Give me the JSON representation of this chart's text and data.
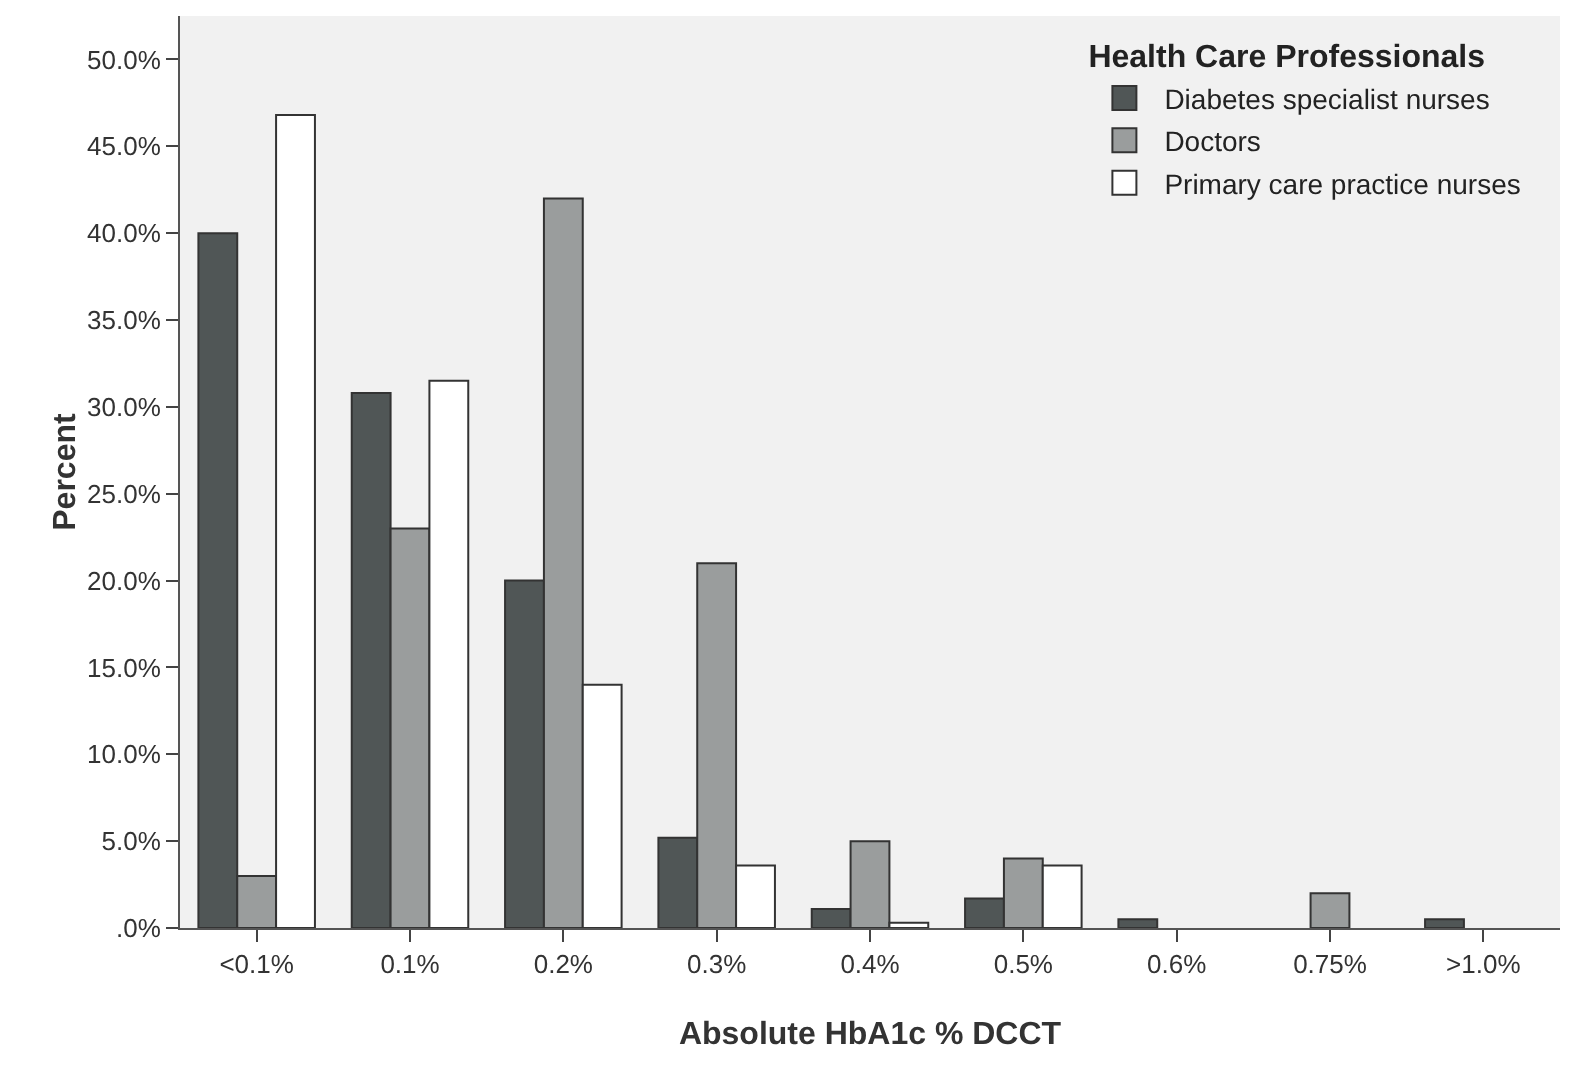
{
  "chart_data": {
    "type": "bar",
    "xlabel": "Absolute HbA1c % DCCT",
    "ylabel": "Percent",
    "legend_title": "Health Care Professionals",
    "categories": [
      "<0.1%",
      "0.1%",
      "0.2%",
      "0.3%",
      "0.4%",
      "0.5%",
      "0.6%",
      "0.75%",
      ">1.0%"
    ],
    "series": [
      {
        "name": "Diabetes specialist nurses",
        "color": "#505656",
        "values": [
          40,
          30.8,
          20,
          5.2,
          1.1,
          1.7,
          0.5,
          0,
          0.5
        ]
      },
      {
        "name": "Doctors",
        "color": "#9a9d9d",
        "values": [
          3,
          23,
          42,
          21,
          5,
          4,
          0,
          2,
          0
        ]
      },
      {
        "name": "Primary care practice nurses",
        "color": "#ffffff",
        "values": [
          46.8,
          31.5,
          14,
          3.6,
          0.3,
          3.6,
          0,
          0,
          0
        ]
      }
    ],
    "ylim": [
      0,
      52.5
    ],
    "yticks": [
      {
        "value": 0,
        "label": ".0%"
      },
      {
        "value": 5,
        "label": "5.0%"
      },
      {
        "value": 10,
        "label": "10.0%"
      },
      {
        "value": 15,
        "label": "15.0%"
      },
      {
        "value": 20,
        "label": "20.0%"
      },
      {
        "value": 25,
        "label": "25.0%"
      },
      {
        "value": 30,
        "label": "30.0%"
      },
      {
        "value": 35,
        "label": "35.0%"
      },
      {
        "value": 40,
        "label": "40.0%"
      },
      {
        "value": 45,
        "label": "45.0%"
      },
      {
        "value": 50,
        "label": "50.0%"
      }
    ],
    "grid": false,
    "legend": "top right"
  }
}
